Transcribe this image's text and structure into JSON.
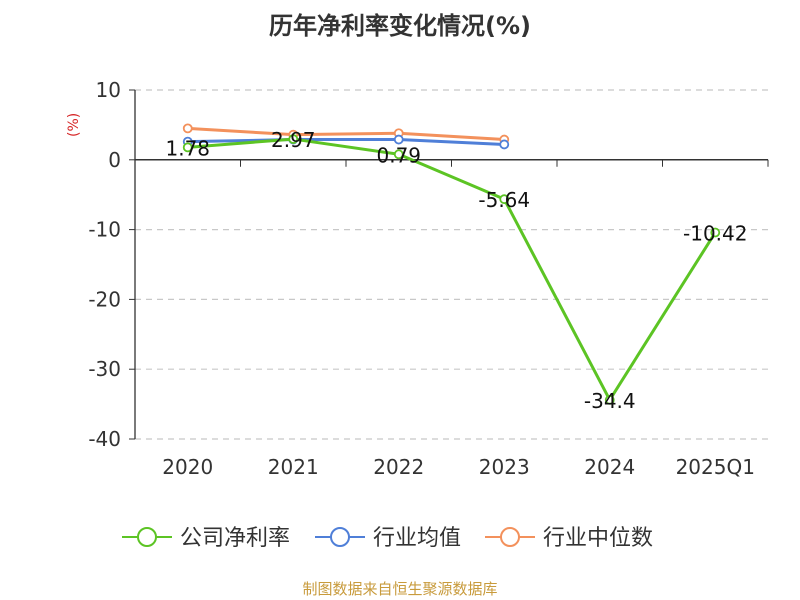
{
  "title": "历年净利率变化情况(%)",
  "source": "制图数据来自恒生聚源数据库",
  "chart_data": {
    "type": "line",
    "title": "历年净利率变化情况(%)",
    "ylabel": "(%)",
    "xlabel": "",
    "categories": [
      "2020",
      "2021",
      "2022",
      "2023",
      "2024",
      "2025Q1"
    ],
    "ylim": [
      -40,
      10
    ],
    "yticks": [
      10,
      0,
      -10,
      -20,
      -30,
      -40
    ],
    "grid": "horizontal-dashed",
    "legend_position": "bottom",
    "series": [
      {
        "name": "公司净利率",
        "color": "#5cc424",
        "values": [
          1.78,
          2.97,
          0.79,
          -5.64,
          -34.4,
          -10.42
        ],
        "labels": [
          "1.78",
          "2.97",
          "0.79",
          "-5.64",
          "-34.4",
          "-10.42"
        ]
      },
      {
        "name": "行业均值",
        "color": "#4f7fd8",
        "values": [
          2.6,
          2.9,
          2.9,
          2.2,
          null,
          null
        ]
      },
      {
        "name": "行业中位数",
        "color": "#f3915c",
        "values": [
          4.5,
          3.6,
          3.8,
          2.9,
          null,
          null
        ]
      }
    ],
    "unit_color": "#d62728"
  }
}
